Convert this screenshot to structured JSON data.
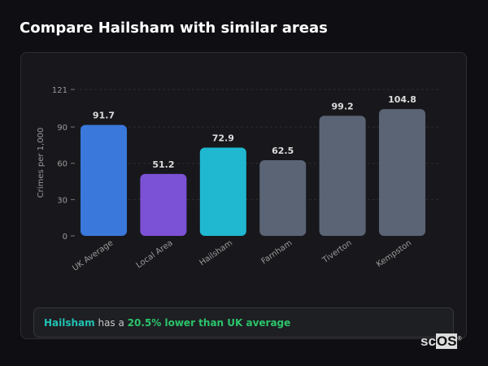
{
  "title": "Compare Hailsham with similar areas",
  "chart_data": {
    "type": "bar",
    "categories": [
      "UK Average",
      "Local Area",
      "Hailsham",
      "Farnham",
      "Tiverton",
      "Kempston"
    ],
    "values": [
      91.7,
      51.2,
      72.9,
      62.5,
      99.2,
      104.8
    ],
    "colors": [
      "#3a78db",
      "#7b52d6",
      "#1fb8d0",
      "#5a6475",
      "#5a6475",
      "#5a6475"
    ],
    "ylabel": "Crimes per 1,000",
    "ylim": [
      0,
      121
    ],
    "yticks": [
      0,
      30,
      60,
      90,
      121
    ],
    "grid": true
  },
  "summary": {
    "area": "Hailsham",
    "middle": " has a ",
    "comparison": "20.5% lower than UK average"
  },
  "logo": {
    "text1": "sc",
    "text2": "OS",
    "mark": "®"
  }
}
